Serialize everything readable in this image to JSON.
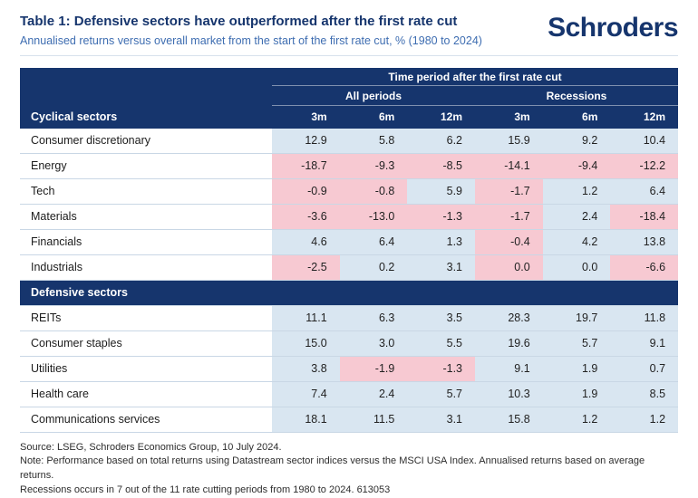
{
  "page": {
    "title": "Table 1: Defensive sectors have outperformed after the first rate cut",
    "subtitle": "Annualised returns versus overall market from the start of the first rate cut, % (1980 to 2024)",
    "logo": "Schroders"
  },
  "colors": {
    "navy": "#16356d",
    "positive_bg": "#d9e6f1",
    "negative_bg": "#f7c9d2",
    "subtitle_blue": "#3e6db1"
  },
  "chart_data": {
    "type": "table",
    "title": "Table 1: Defensive sectors have outperformed after the first rate cut",
    "subtitle": "Annualised returns versus overall market from the start of the first rate cut, % (1980 to 2024)",
    "top_header": "Time period after the first rate cut",
    "group_headers": [
      "All periods",
      "Recessions"
    ],
    "col_headers": [
      "3m",
      "6m",
      "12m",
      "3m",
      "6m",
      "12m"
    ],
    "cell_tone_legend": {
      "b": "positive/neutral (light blue)",
      "p": "negative (pink)"
    },
    "sections": [
      {
        "label": "Cyclical sectors",
        "rows": [
          {
            "name": "Consumer discretionary",
            "values": [
              "12.9",
              "5.8",
              "6.2",
              "15.9",
              "9.2",
              "10.4"
            ],
            "tones": [
              "b",
              "b",
              "b",
              "b",
              "b",
              "b"
            ]
          },
          {
            "name": "Energy",
            "values": [
              "-18.7",
              "-9.3",
              "-8.5",
              "-14.1",
              "-9.4",
              "-12.2"
            ],
            "tones": [
              "p",
              "p",
              "p",
              "p",
              "p",
              "p"
            ]
          },
          {
            "name": "Tech",
            "values": [
              "-0.9",
              "-0.8",
              "5.9",
              "-1.7",
              "1.2",
              "6.4"
            ],
            "tones": [
              "p",
              "p",
              "b",
              "p",
              "b",
              "b"
            ]
          },
          {
            "name": "Materials",
            "values": [
              "-3.6",
              "-13.0",
              "-1.3",
              "-1.7",
              "2.4",
              "-18.4"
            ],
            "tones": [
              "p",
              "p",
              "p",
              "p",
              "b",
              "p"
            ]
          },
          {
            "name": "Financials",
            "values": [
              "4.6",
              "6.4",
              "1.3",
              "-0.4",
              "4.2",
              "13.8"
            ],
            "tones": [
              "b",
              "b",
              "b",
              "p",
              "b",
              "b"
            ]
          },
          {
            "name": "Industrials",
            "values": [
              "-2.5",
              "0.2",
              "3.1",
              "0.0",
              "0.0",
              "-6.6"
            ],
            "tones": [
              "p",
              "b",
              "b",
              "p",
              "b",
              "p"
            ]
          }
        ]
      },
      {
        "label": "Defensive sectors",
        "rows": [
          {
            "name": "REITs",
            "values": [
              "11.1",
              "6.3",
              "3.5",
              "28.3",
              "19.7",
              "11.8"
            ],
            "tones": [
              "b",
              "b",
              "b",
              "b",
              "b",
              "b"
            ]
          },
          {
            "name": "Consumer staples",
            "values": [
              "15.0",
              "3.0",
              "5.5",
              "19.6",
              "5.7",
              "9.1"
            ],
            "tones": [
              "b",
              "b",
              "b",
              "b",
              "b",
              "b"
            ]
          },
          {
            "name": "Utilities",
            "values": [
              "3.8",
              "-1.9",
              "-1.3",
              "9.1",
              "1.9",
              "0.7"
            ],
            "tones": [
              "b",
              "p",
              "p",
              "b",
              "b",
              "b"
            ]
          },
          {
            "name": "Health care",
            "values": [
              "7.4",
              "2.4",
              "5.7",
              "10.3",
              "1.9",
              "8.5"
            ],
            "tones": [
              "b",
              "b",
              "b",
              "b",
              "b",
              "b"
            ]
          },
          {
            "name": "Communications services",
            "values": [
              "18.1",
              "11.5",
              "3.1",
              "15.8",
              "1.2",
              "1.2"
            ],
            "tones": [
              "b",
              "b",
              "b",
              "b",
              "b",
              "b"
            ]
          }
        ]
      }
    ]
  },
  "footer": {
    "line1": "Source: LSEG, Schroders Economics Group, 10 July 2024.",
    "line2": "Note: Performance based on total returns using Datastream sector indices versus the MSCI USA Index. Annualised returns based on average returns.",
    "line3": "Recessions occurs in 7 out of the 11 rate cutting periods from 1980 to 2024. 613053"
  }
}
